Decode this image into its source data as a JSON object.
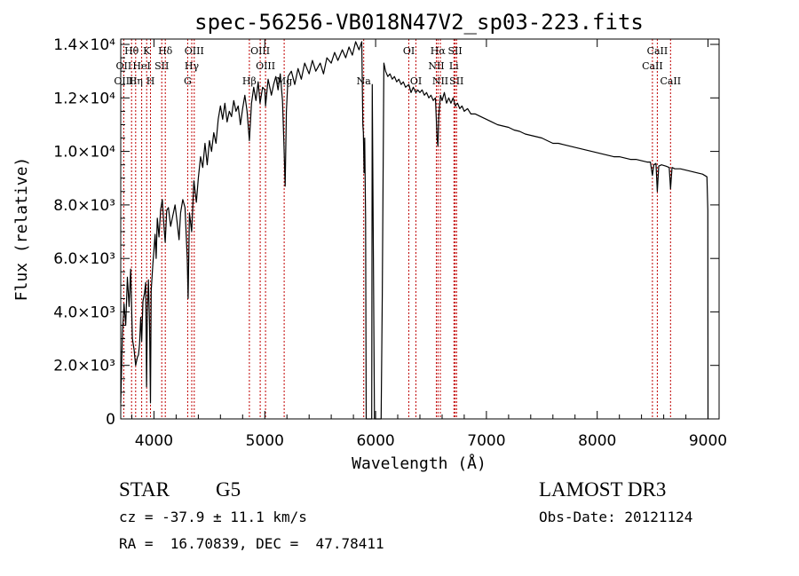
{
  "chart_data": {
    "type": "line",
    "title": "spec-56256-VB018N47V2_sp03-223.fits",
    "xlabel": "Wavelength (Å)",
    "ylabel": "Flux (relative)",
    "xlim": [
      3700,
      9100
    ],
    "ylim": [
      0,
      14200
    ],
    "x_ticks": [
      {
        "value": 4000,
        "label": "4000"
      },
      {
        "value": 5000,
        "label": "5000"
      },
      {
        "value": 6000,
        "label": "6000"
      },
      {
        "value": 7000,
        "label": "7000"
      },
      {
        "value": 8000,
        "label": "8000"
      },
      {
        "value": 9000,
        "label": "9000"
      }
    ],
    "y_ticks": [
      {
        "value": 0,
        "label": "0"
      },
      {
        "value": 2000,
        "label": "2.0×10³"
      },
      {
        "value": 4000,
        "label": "4.0×10³"
      },
      {
        "value": 6000,
        "label": "6.0×10³"
      },
      {
        "value": 8000,
        "label": "8.0×10³"
      },
      {
        "value": 10000,
        "label": "1.0×10⁴"
      },
      {
        "value": 12000,
        "label": "1.2×10⁴"
      },
      {
        "value": 14000,
        "label": "1.4×10⁴"
      }
    ],
    "series": [
      {
        "name": "flux",
        "color": "#000000",
        "points": [
          [
            3700,
            600
          ],
          [
            3715,
            3200
          ],
          [
            3730,
            4300
          ],
          [
            3745,
            3500
          ],
          [
            3760,
            5300
          ],
          [
            3775,
            4200
          ],
          [
            3790,
            5600
          ],
          [
            3805,
            3000
          ],
          [
            3820,
            2600
          ],
          [
            3835,
            2000
          ],
          [
            3850,
            2300
          ],
          [
            3860,
            2400
          ],
          [
            3870,
            2800
          ],
          [
            3880,
            3800
          ],
          [
            3889,
            2900
          ],
          [
            3900,
            4400
          ],
          [
            3915,
            4700
          ],
          [
            3925,
            5100
          ],
          [
            3933,
            1200
          ],
          [
            3940,
            4000
          ],
          [
            3950,
            5200
          ],
          [
            3960,
            3500
          ],
          [
            3968,
            600
          ],
          [
            3975,
            4800
          ],
          [
            3990,
            5800
          ],
          [
            4000,
            6300
          ],
          [
            4010,
            6900
          ],
          [
            4020,
            6000
          ],
          [
            4030,
            7500
          ],
          [
            4045,
            6800
          ],
          [
            4060,
            7800
          ],
          [
            4075,
            8200
          ],
          [
            4090,
            7200
          ],
          [
            4101,
            6600
          ],
          [
            4115,
            7800
          ],
          [
            4130,
            7900
          ],
          [
            4150,
            7200
          ],
          [
            4170,
            7600
          ],
          [
            4190,
            8000
          ],
          [
            4210,
            7300
          ],
          [
            4226,
            6700
          ],
          [
            4240,
            7700
          ],
          [
            4260,
            8200
          ],
          [
            4280,
            7900
          ],
          [
            4300,
            6000
          ],
          [
            4308,
            4500
          ],
          [
            4320,
            7700
          ],
          [
            4340,
            7000
          ],
          [
            4360,
            8900
          ],
          [
            4383,
            8100
          ],
          [
            4400,
            9000
          ],
          [
            4420,
            9800
          ],
          [
            4440,
            9400
          ],
          [
            4460,
            10300
          ],
          [
            4480,
            9500
          ],
          [
            4500,
            10400
          ],
          [
            4520,
            10000
          ],
          [
            4540,
            10700
          ],
          [
            4560,
            10300
          ],
          [
            4580,
            11200
          ],
          [
            4600,
            11700
          ],
          [
            4620,
            11200
          ],
          [
            4640,
            11800
          ],
          [
            4660,
            11100
          ],
          [
            4680,
            11500
          ],
          [
            4700,
            11300
          ],
          [
            4720,
            11900
          ],
          [
            4740,
            11500
          ],
          [
            4760,
            11700
          ],
          [
            4780,
            11000
          ],
          [
            4800,
            11600
          ],
          [
            4820,
            12100
          ],
          [
            4840,
            11500
          ],
          [
            4861,
            10400
          ],
          [
            4880,
            11800
          ],
          [
            4900,
            12400
          ],
          [
            4920,
            11900
          ],
          [
            4940,
            12600
          ],
          [
            4957,
            11800
          ],
          [
            4980,
            12400
          ],
          [
            5000,
            12300
          ],
          [
            5007,
            11700
          ],
          [
            5030,
            12700
          ],
          [
            5060,
            12100
          ],
          [
            5080,
            12500
          ],
          [
            5100,
            12800
          ],
          [
            5120,
            12300
          ],
          [
            5140,
            12900
          ],
          [
            5160,
            11900
          ],
          [
            5167,
            11000
          ],
          [
            5172,
            10400
          ],
          [
            5184,
            8700
          ],
          [
            5195,
            11500
          ],
          [
            5210,
            12800
          ],
          [
            5240,
            13000
          ],
          [
            5270,
            12500
          ],
          [
            5300,
            13100
          ],
          [
            5330,
            12700
          ],
          [
            5360,
            13300
          ],
          [
            5400,
            12900
          ],
          [
            5430,
            13400
          ],
          [
            5460,
            13000
          ],
          [
            5500,
            13300
          ],
          [
            5530,
            12900
          ],
          [
            5560,
            13500
          ],
          [
            5600,
            13300
          ],
          [
            5630,
            13700
          ],
          [
            5660,
            13400
          ],
          [
            5700,
            13800
          ],
          [
            5730,
            13500
          ],
          [
            5760,
            13900
          ],
          [
            5790,
            13600
          ],
          [
            5820,
            14100
          ],
          [
            5850,
            13800
          ],
          [
            5875,
            14100
          ],
          [
            5885,
            11000
          ],
          [
            5890,
            10700
          ],
          [
            5896,
            9200
          ],
          [
            5902,
            10500
          ],
          [
            5910,
            7500
          ],
          [
            5915,
            0
          ],
          [
            5940,
            0
          ],
          [
            5965,
            0
          ],
          [
            5970,
            12500
          ],
          [
            5990,
            0
          ],
          [
            6050,
            0
          ],
          [
            6060,
            4600
          ],
          [
            6075,
            13300
          ],
          [
            6090,
            13000
          ],
          [
            6110,
            12800
          ],
          [
            6130,
            12900
          ],
          [
            6150,
            12700
          ],
          [
            6170,
            12800
          ],
          [
            6190,
            12600
          ],
          [
            6210,
            12700
          ],
          [
            6230,
            12500
          ],
          [
            6250,
            12600
          ],
          [
            6270,
            12400
          ],
          [
            6300,
            12500
          ],
          [
            6320,
            12200
          ],
          [
            6340,
            12400
          ],
          [
            6363,
            12200
          ],
          [
            6380,
            12300
          ],
          [
            6400,
            12200
          ],
          [
            6420,
            12300
          ],
          [
            6440,
            12100
          ],
          [
            6460,
            12200
          ],
          [
            6480,
            12000
          ],
          [
            6500,
            12100
          ],
          [
            6520,
            11900
          ],
          [
            6540,
            12000
          ],
          [
            6555,
            10500
          ],
          [
            6563,
            10200
          ],
          [
            6570,
            11300
          ],
          [
            6585,
            12100
          ],
          [
            6600,
            11900
          ],
          [
            6620,
            12200
          ],
          [
            6640,
            11800
          ],
          [
            6660,
            12000
          ],
          [
            6680,
            11800
          ],
          [
            6700,
            12000
          ],
          [
            6720,
            11700
          ],
          [
            6740,
            11800
          ],
          [
            6760,
            11600
          ],
          [
            6780,
            11700
          ],
          [
            6800,
            11500
          ],
          [
            6830,
            11600
          ],
          [
            6860,
            11400
          ],
          [
            6900,
            11400
          ],
          [
            6950,
            11300
          ],
          [
            7000,
            11200
          ],
          [
            7050,
            11100
          ],
          [
            7100,
            11000
          ],
          [
            7150,
            10950
          ],
          [
            7200,
            10900
          ],
          [
            7250,
            10800
          ],
          [
            7300,
            10750
          ],
          [
            7350,
            10650
          ],
          [
            7400,
            10600
          ],
          [
            7450,
            10550
          ],
          [
            7500,
            10500
          ],
          [
            7550,
            10400
          ],
          [
            7600,
            10300
          ],
          [
            7650,
            10300
          ],
          [
            7700,
            10250
          ],
          [
            7750,
            10200
          ],
          [
            7800,
            10150
          ],
          [
            7850,
            10100
          ],
          [
            7900,
            10050
          ],
          [
            7950,
            10000
          ],
          [
            8000,
            9950
          ],
          [
            8050,
            9900
          ],
          [
            8100,
            9850
          ],
          [
            8150,
            9800
          ],
          [
            8200,
            9800
          ],
          [
            8250,
            9750
          ],
          [
            8300,
            9700
          ],
          [
            8350,
            9700
          ],
          [
            8400,
            9650
          ],
          [
            8450,
            9600
          ],
          [
            8480,
            9600
          ],
          [
            8498,
            9100
          ],
          [
            8510,
            9500
          ],
          [
            8530,
            9550
          ],
          [
            8542,
            8500
          ],
          [
            8555,
            9450
          ],
          [
            8580,
            9500
          ],
          [
            8620,
            9450
          ],
          [
            8650,
            9400
          ],
          [
            8662,
            8600
          ],
          [
            8675,
            9400
          ],
          [
            8700,
            9350
          ],
          [
            8750,
            9350
          ],
          [
            8800,
            9300
          ],
          [
            8850,
            9250
          ],
          [
            8900,
            9200
          ],
          [
            8950,
            9150
          ],
          [
            8990,
            9050
          ],
          [
            8998,
            7800
          ],
          [
            9000,
            0
          ]
        ]
      }
    ],
    "line_groups": [
      {
        "group": "top",
        "labels": [
          {
            "name": "Hθ",
            "x": 3798
          },
          {
            "name": "K",
            "x": 3934
          },
          {
            "name": "Hδ",
            "x": 4102
          },
          {
            "name": "OIII",
            "x": 4363
          },
          {
            "name": "OIII",
            "x": 4959
          },
          {
            "name": "OI",
            "x": 6300
          },
          {
            "name": "Hα",
            "x": 6563
          },
          {
            "name": "SII",
            "x": 6717
          },
          {
            "name": "CaII",
            "x": 8542
          }
        ]
      },
      {
        "group": "middle",
        "labels": [
          {
            "name": "OII",
            "x": 3727
          },
          {
            "name": "HeI",
            "x": 3889
          },
          {
            "name": "SII",
            "x": 4070
          },
          {
            "name": "Hγ",
            "x": 4341
          },
          {
            "name": "OIII",
            "x": 5007
          },
          {
            "name": "NII",
            "x": 6548
          },
          {
            "name": "Li",
            "x": 6707
          },
          {
            "name": "CaII",
            "x": 8498
          }
        ]
      },
      {
        "group": "bottom",
        "labels": [
          {
            "name": "OIII",
            "x": 3727
          },
          {
            "name": "Hη",
            "x": 3835
          },
          {
            "name": "H",
            "x": 3968
          },
          {
            "name": "G",
            "x": 4304
          },
          {
            "name": "Hβ",
            "x": 4861
          },
          {
            "name": "Mg",
            "x": 5175
          },
          {
            "name": "Na",
            "x": 5893
          },
          {
            "name": "OI",
            "x": 6364
          },
          {
            "name": "NII",
            "x": 6584
          },
          {
            "name": "SII",
            "x": 6731
          },
          {
            "name": "CaII",
            "x": 8662
          }
        ]
      }
    ],
    "marker_lines": [
      3727,
      3798,
      3835,
      3889,
      3934,
      3968,
      4070,
      4102,
      4304,
      4341,
      4363,
      4861,
      4959,
      5007,
      5175,
      5893,
      6300,
      6364,
      6548,
      6563,
      6584,
      6707,
      6717,
      6731,
      8498,
      8542,
      8662
    ],
    "marker_color": "#c00000"
  },
  "info": {
    "object_class": "STAR",
    "subclass": "G5",
    "survey": "LAMOST DR3",
    "cz_text": "cz = -37.9 ± 11.1 km/s",
    "obs_date": "Obs-Date: 20121124",
    "coords_text": "RA =  16.70839, DEC =  47.78411"
  }
}
